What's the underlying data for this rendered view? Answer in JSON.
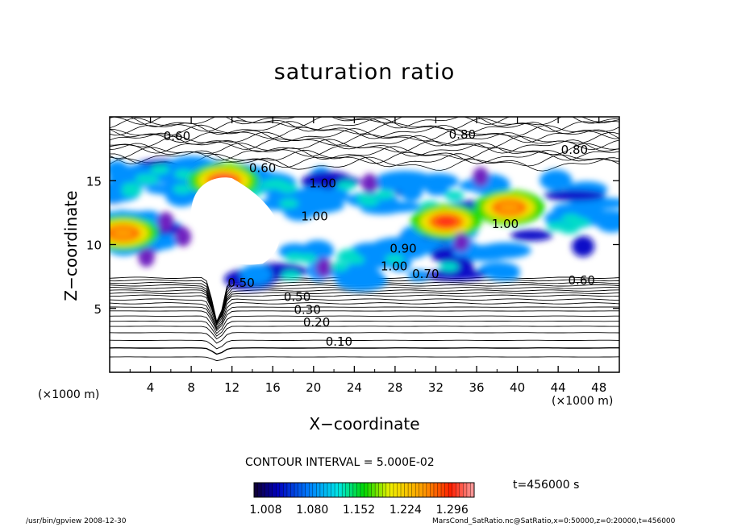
{
  "chart_data": {
    "type": "heatmap",
    "title": "saturation ratio",
    "xlabel": "X−coordinate",
    "ylabel": "Z−coordinate",
    "x_unit_label": "(×1000 m)",
    "xlim": [
      0,
      50
    ],
    "ylim": [
      0,
      20
    ],
    "x_ticks": [
      4,
      8,
      12,
      16,
      20,
      24,
      28,
      32,
      36,
      40,
      44,
      48
    ],
    "y_ticks": [
      5,
      10,
      15
    ],
    "contour_interval_text": "CONTOUR INTERVAL = 5.000E-02",
    "colorbar": {
      "range": [
        0.99,
        1.33
      ],
      "tick_labels": [
        "1.008",
        "1.080",
        "1.152",
        "1.224",
        "1.296"
      ],
      "tick_values": [
        1.008,
        1.08,
        1.152,
        1.224,
        1.296
      ]
    },
    "contour_labels": [
      {
        "text": "0.10",
        "x": 22.5,
        "y": 2.4
      },
      {
        "text": "0.20",
        "x": 20.3,
        "y": 3.9
      },
      {
        "text": "0.30",
        "x": 19.4,
        "y": 4.9
      },
      {
        "text": "0.50",
        "x": 18.4,
        "y": 5.9
      },
      {
        "text": "0.50",
        "x": 12.9,
        "y": 7.0
      },
      {
        "text": "0.60",
        "x": 6.6,
        "y": 18.5
      },
      {
        "text": "0.60",
        "x": 46.3,
        "y": 7.2
      },
      {
        "text": "0.80",
        "x": 45.6,
        "y": 17.4
      },
      {
        "text": "0.80",
        "x": 34.6,
        "y": 18.6
      },
      {
        "text": "0.90",
        "x": 28.8,
        "y": 9.7
      },
      {
        "text": "0.70",
        "x": 31.0,
        "y": 7.7
      },
      {
        "text": "1.00",
        "x": 20.9,
        "y": 14.8
      },
      {
        "text": "1.00",
        "x": 20.1,
        "y": 12.2
      },
      {
        "text": "1.00",
        "x": 27.9,
        "y": 8.3
      },
      {
        "text": "1.00",
        "x": 38.8,
        "y": 11.6
      },
      {
        "text": "0.60",
        "x": 15.0,
        "y": 16.0
      }
    ],
    "supersaturated_regions": [
      {
        "x": [
          0,
          14
        ],
        "z": [
          13.5,
          16.5
        ]
      },
      {
        "x": [
          0,
          5
        ],
        "z": [
          9.5,
          12.5
        ]
      },
      {
        "x": [
          10,
          30
        ],
        "z": [
          12.5,
          15.5
        ]
      },
      {
        "x": [
          27,
          50
        ],
        "z": [
          9.5,
          15.5
        ]
      },
      {
        "x": [
          13,
          40
        ],
        "z": [
          7.0,
          10.0
        ]
      }
    ],
    "high_value_cores": [
      {
        "x": 11.2,
        "z": 15.0,
        "value": 1.31
      },
      {
        "x": 33.0,
        "z": 11.8,
        "value": 1.3
      },
      {
        "x": 1.3,
        "z": 10.9,
        "value": 1.25
      },
      {
        "x": 39.2,
        "z": 12.9,
        "value": 1.25
      }
    ]
  },
  "time_text": "t=456000  s",
  "footer": {
    "left": "/usr/bin/gpview   2008-12-30",
    "right": "MarsCond_SatRatio.nc@SatRatio,x=0:50000,z=0:20000,t=456000"
  }
}
